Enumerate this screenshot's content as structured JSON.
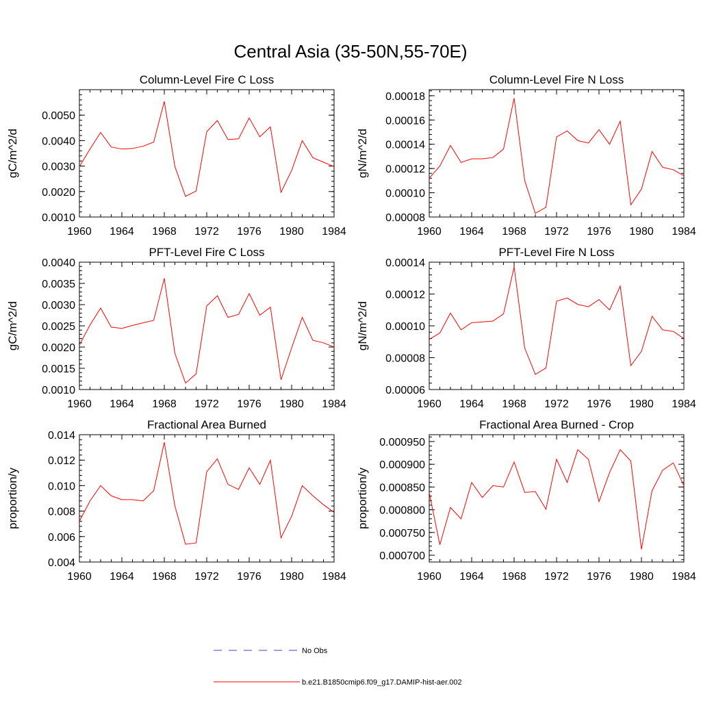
{
  "figure": {
    "title": "Central Asia (35-50N,55-70E)",
    "legend": [
      {
        "label": "No Obs",
        "color": "#4040c0",
        "style": "dashed"
      },
      {
        "label": "b.e21.B1850cmip6.f09_g17.DAMIP-hist-aer.002",
        "color": "#ff0000",
        "style": "solid"
      }
    ]
  },
  "chart_data": [
    {
      "type": "line",
      "title": "Column-Level Fire C Loss",
      "ylabel": "gC/m^2/d",
      "xlim": [
        1960,
        1984
      ],
      "ylim": [
        0.001,
        0.006
      ],
      "xticks": [
        "1960",
        "1964",
        "1968",
        "1972",
        "1976",
        "1980",
        "1984"
      ],
      "yticks": [
        "0.0010",
        "0.0020",
        "0.0030",
        "0.0040",
        "0.0050"
      ],
      "x": [
        1960,
        1961,
        1962,
        1963,
        1964,
        1965,
        1966,
        1967,
        1968,
        1969,
        1970,
        1971,
        1972,
        1973,
        1974,
        1975,
        1976,
        1977,
        1978,
        1979,
        1980,
        1981,
        1982,
        1983,
        1984
      ],
      "series": [
        {
          "color": "#ff0000",
          "values": [
            0.00298,
            0.00367,
            0.00432,
            0.00375,
            0.00367,
            0.00369,
            0.00378,
            0.00394,
            0.00554,
            0.00298,
            0.00181,
            0.00202,
            0.00435,
            0.00479,
            0.00404,
            0.00407,
            0.00489,
            0.00415,
            0.00454,
            0.00197,
            0.00283,
            0.004,
            0.00333,
            0.00315,
            0.00298
          ]
        }
      ]
    },
    {
      "type": "line",
      "title": "Column-Level Fire N Loss",
      "ylabel": "gN/m^2/d",
      "xlim": [
        1960,
        1984
      ],
      "ylim": [
        8e-05,
        0.000185
      ],
      "xticks": [
        "1960",
        "1964",
        "1968",
        "1972",
        "1976",
        "1980",
        "1984"
      ],
      "yticks": [
        "0.00008",
        "0.00010",
        "0.00012",
        "0.00014",
        "0.00016",
        "0.00018"
      ],
      "x": [
        1960,
        1961,
        1962,
        1963,
        1964,
        1965,
        1966,
        1967,
        1968,
        1969,
        1970,
        1971,
        1972,
        1973,
        1974,
        1975,
        1976,
        1977,
        1978,
        1979,
        1980,
        1981,
        1982,
        1983,
        1984
      ],
      "series": [
        {
          "color": "#ff0000",
          "values": [
            0.000112,
            0.000122,
            0.000139,
            0.000125,
            0.000128,
            0.000128,
            0.000129,
            0.000136,
            0.000178,
            0.00011,
            8.3e-05,
            8.8e-05,
            0.000146,
            0.000151,
            0.000143,
            0.000141,
            0.000152,
            0.00014,
            0.000159,
            9e-05,
            0.000103,
            0.000134,
            0.000121,
            0.000119,
            0.000114
          ]
        }
      ]
    },
    {
      "type": "line",
      "title": "PFT-Level Fire C Loss",
      "ylabel": "gC/m^2/d",
      "xlim": [
        1960,
        1984
      ],
      "ylim": [
        0.001,
        0.004
      ],
      "xticks": [
        "1960",
        "1964",
        "1968",
        "1972",
        "1976",
        "1980",
        "1984"
      ],
      "yticks": [
        "0.0010",
        "0.0015",
        "0.0020",
        "0.0025",
        "0.0030",
        "0.0035",
        "0.0040"
      ],
      "x": [
        1960,
        1961,
        1962,
        1963,
        1964,
        1965,
        1966,
        1967,
        1968,
        1969,
        1970,
        1971,
        1972,
        1973,
        1974,
        1975,
        1976,
        1977,
        1978,
        1979,
        1980,
        1981,
        1982,
        1983,
        1984
      ],
      "series": [
        {
          "color": "#ff0000",
          "values": [
            0.00205,
            0.00252,
            0.00292,
            0.00247,
            0.00244,
            0.00251,
            0.00257,
            0.00263,
            0.00362,
            0.00185,
            0.00115,
            0.00137,
            0.00297,
            0.00321,
            0.0027,
            0.00277,
            0.00326,
            0.00275,
            0.00294,
            0.00123,
            0.00198,
            0.0027,
            0.00216,
            0.0021,
            0.002
          ]
        }
      ]
    },
    {
      "type": "line",
      "title": "PFT-Level Fire N Loss",
      "ylabel": "gN/m^2/d",
      "xlim": [
        1960,
        1984
      ],
      "ylim": [
        6e-05,
        0.00014
      ],
      "xticks": [
        "1960",
        "1964",
        "1968",
        "1972",
        "1976",
        "1980",
        "1984"
      ],
      "yticks": [
        "0.00006",
        "0.00008",
        "0.00010",
        "0.00012",
        "0.00014"
      ],
      "x": [
        1960,
        1961,
        1962,
        1963,
        1964,
        1965,
        1966,
        1967,
        1968,
        1969,
        1970,
        1971,
        1972,
        1973,
        1974,
        1975,
        1976,
        1977,
        1978,
        1979,
        1980,
        1981,
        1982,
        1983,
        1984
      ],
      "series": [
        {
          "color": "#ff0000",
          "values": [
            9.15e-05,
            9.55e-05,
            0.000108,
            9.75e-05,
            0.000102,
            0.0001025,
            0.000103,
            0.0001075,
            0.000137,
            8.6e-05,
            6.95e-05,
            7.35e-05,
            0.0001155,
            0.0001175,
            0.0001135,
            0.000112,
            0.0001165,
            0.00011,
            0.000125,
            7.5e-05,
            8.4e-05,
            0.000106,
            9.75e-05,
            9.65e-05,
            9.2e-05
          ]
        }
      ]
    },
    {
      "type": "line",
      "title": "Fractional Area Burned",
      "ylabel": "proportion/y",
      "xlim": [
        1960,
        1984
      ],
      "ylim": [
        0.004,
        0.014
      ],
      "xticks": [
        "1960",
        "1964",
        "1968",
        "1972",
        "1976",
        "1980",
        "1984"
      ],
      "yticks": [
        "0.004",
        "0.006",
        "0.008",
        "0.010",
        "0.012",
        "0.014"
      ],
      "x": [
        1960,
        1961,
        1962,
        1963,
        1964,
        1965,
        1966,
        1967,
        1968,
        1969,
        1970,
        1971,
        1972,
        1973,
        1974,
        1975,
        1976,
        1977,
        1978,
        1979,
        1980,
        1981,
        1982,
        1983,
        1984
      ],
      "series": [
        {
          "color": "#ff0000",
          "values": [
            0.0072,
            0.0088,
            0.01,
            0.0092,
            0.0089,
            0.0089,
            0.0088,
            0.0096,
            0.0134,
            0.0084,
            0.0054,
            0.0055,
            0.0111,
            0.0121,
            0.0101,
            0.0097,
            0.0114,
            0.0101,
            0.012,
            0.0059,
            0.0076,
            0.01,
            0.0092,
            0.0085,
            0.0079
          ]
        }
      ]
    },
    {
      "type": "line",
      "title": "Fractional Area Burned - Crop",
      "ylabel": "proportion/y",
      "xlim": [
        1960,
        1984
      ],
      "ylim": [
        0.000685,
        0.000965
      ],
      "xticks": [
        "1960",
        "1964",
        "1968",
        "1972",
        "1976",
        "1980",
        "1984"
      ],
      "yticks": [
        "0.000700",
        "0.000750",
        "0.000800",
        "0.000850",
        "0.000900",
        "0.000950"
      ],
      "x": [
        1960,
        1961,
        1962,
        1963,
        1964,
        1965,
        1966,
        1967,
        1968,
        1969,
        1970,
        1971,
        1972,
        1973,
        1974,
        1975,
        1976,
        1977,
        1978,
        1979,
        1980,
        1981,
        1982,
        1983,
        1984
      ],
      "series": [
        {
          "color": "#ff0000",
          "values": [
            0.000838,
            0.000723,
            0.000805,
            0.00078,
            0.00086,
            0.000827,
            0.000853,
            0.00085,
            0.000905,
            0.000838,
            0.00084,
            0.000801,
            0.000911,
            0.00086,
            0.000932,
            0.000911,
            0.000818,
            0.000882,
            0.000932,
            0.000907,
            0.000713,
            0.000842,
            0.000887,
            0.000903,
            0.000853
          ]
        }
      ]
    }
  ]
}
